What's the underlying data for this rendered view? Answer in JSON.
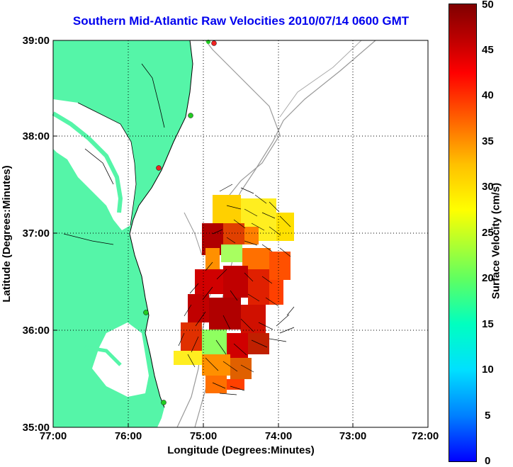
{
  "title": "Southern Mid-Atlantic Raw Velocities 2010/07/14 0600 GMT",
  "axes": {
    "xlabel": "Longitude (Degrees:Minutes)",
    "ylabel": "Latitude (Degrees:Minutes)",
    "xticks": [
      "77:00",
      "76:00",
      "75:00",
      "74:00",
      "73:00",
      "72:00"
    ],
    "yticks": [
      "39:00",
      "38:00",
      "37:00",
      "36:00",
      "35:00"
    ]
  },
  "colorbar": {
    "label": "Surface Velocity (cm/s)",
    "ticks": [
      "50",
      "45",
      "40",
      "35",
      "30",
      "25",
      "20",
      "15",
      "10",
      "5",
      "0"
    ]
  },
  "colors": {
    "land": "#55f5a8",
    "title": "#0000ee",
    "bathymetry": "#999999",
    "station_green": "#22cc22",
    "station_red": "#ee2222"
  }
}
